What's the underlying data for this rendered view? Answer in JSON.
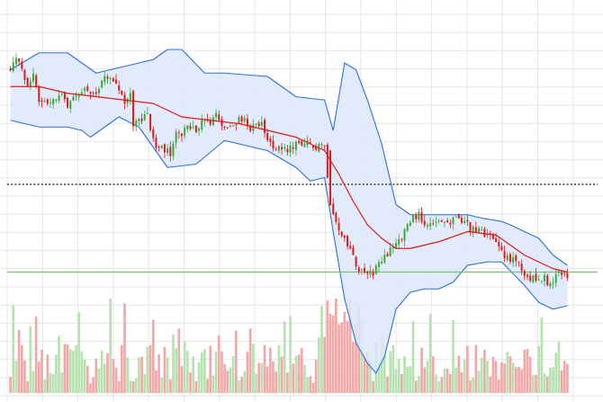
{
  "colors": {
    "background": "#ffffff",
    "grid": "#e6e6e6",
    "up": "#38a838",
    "down": "#e01818",
    "up_volume": "#b6e2b0",
    "down_volume": "#f2a8a8",
    "band_line": "#2f6fdc",
    "band_fill": "#dde8fa",
    "moving_average": "#e01818",
    "resistance_line": "#555555",
    "support_line": "#7cc26a"
  },
  "chart_data": {
    "type": "candlestick",
    "title": "",
    "xlabel": "",
    "ylabel": "",
    "grid": true,
    "legend": "none",
    "ylim": [
      0,
      100
    ],
    "volume_ylim": [
      0,
      100
    ],
    "indicators": [
      "bollinger-bands",
      "moving-average"
    ],
    "reference_lines": [
      {
        "kind": "resistance",
        "style": "dotted",
        "value": 56
      },
      {
        "kind": "support",
        "style": "solid",
        "value": 30
      }
    ],
    "anchors": {
      "close": [
        [
          0,
          91
        ],
        [
          3,
          93
        ],
        [
          6,
          85
        ],
        [
          8,
          90
        ],
        [
          10,
          80
        ],
        [
          15,
          81
        ],
        [
          18,
          82
        ],
        [
          20,
          80
        ],
        [
          22,
          83
        ],
        [
          24,
          82
        ],
        [
          26,
          84
        ],
        [
          30,
          83
        ],
        [
          33,
          89
        ],
        [
          36,
          86
        ],
        [
          38,
          84
        ],
        [
          40,
          80
        ],
        [
          42,
          82
        ],
        [
          43,
          74
        ],
        [
          45,
          75
        ],
        [
          48,
          76
        ],
        [
          50,
          70
        ],
        [
          52,
          66
        ],
        [
          53,
          67
        ],
        [
          56,
          65
        ],
        [
          58,
          72
        ],
        [
          60,
          71
        ],
        [
          62,
          74
        ],
        [
          64,
          72
        ],
        [
          66,
          73
        ],
        [
          68,
          75
        ],
        [
          70,
          74
        ],
        [
          72,
          76
        ],
        [
          74,
          73
        ],
        [
          76,
          72
        ],
        [
          78,
          73
        ],
        [
          80,
          76
        ],
        [
          82,
          75
        ],
        [
          84,
          73
        ],
        [
          86,
          73
        ],
        [
          88,
          74
        ],
        [
          90,
          69
        ],
        [
          92,
          67
        ],
        [
          94,
          68
        ],
        [
          96,
          66
        ],
        [
          98,
          67
        ],
        [
          100,
          68
        ],
        [
          102,
          67
        ],
        [
          104,
          68
        ],
        [
          106,
          66
        ],
        [
          108,
          67
        ],
        [
          110,
          67
        ],
        [
          112,
          51
        ],
        [
          113,
          48
        ],
        [
          115,
          43
        ],
        [
          117,
          39
        ],
        [
          119,
          36
        ],
        [
          121,
          32
        ],
        [
          123,
          30
        ],
        [
          125,
          29
        ],
        [
          127,
          30
        ],
        [
          129,
          32
        ],
        [
          131,
          34
        ],
        [
          133,
          37
        ],
        [
          135,
          39
        ],
        [
          137,
          40
        ],
        [
          139,
          44
        ],
        [
          141,
          46
        ],
        [
          143,
          47
        ],
        [
          145,
          45
        ],
        [
          147,
          44
        ],
        [
          149,
          44
        ],
        [
          151,
          45
        ],
        [
          153,
          44
        ],
        [
          155,
          46
        ],
        [
          157,
          45
        ],
        [
          159,
          45
        ],
        [
          161,
          43
        ],
        [
          163,
          42
        ],
        [
          165,
          42
        ],
        [
          167,
          41
        ],
        [
          169,
          39
        ],
        [
          171,
          38
        ],
        [
          173,
          35
        ],
        [
          175,
          34
        ],
        [
          177,
          33
        ],
        [
          179,
          31
        ],
        [
          181,
          29
        ],
        [
          183,
          28
        ],
        [
          185,
          27
        ],
        [
          187,
          28
        ],
        [
          189,
          26
        ],
        [
          191,
          29
        ],
        [
          193,
          30
        ],
        [
          195,
          29
        ]
      ],
      "moving_average": [
        [
          0,
          85
        ],
        [
          10,
          85
        ],
        [
          20,
          83
        ],
        [
          30,
          82
        ],
        [
          40,
          81
        ],
        [
          50,
          80
        ],
        [
          60,
          76
        ],
        [
          70,
          75
        ],
        [
          80,
          74
        ],
        [
          90,
          72
        ],
        [
          100,
          70
        ],
        [
          110,
          66
        ],
        [
          115,
          59
        ],
        [
          120,
          51
        ],
        [
          125,
          44
        ],
        [
          130,
          40
        ],
        [
          135,
          37
        ],
        [
          140,
          37
        ],
        [
          150,
          39
        ],
        [
          160,
          42
        ],
        [
          170,
          41
        ],
        [
          180,
          35
        ],
        [
          190,
          31
        ],
        [
          195,
          30
        ]
      ],
      "upper_band": [
        [
          0,
          90
        ],
        [
          10,
          95
        ],
        [
          20,
          95
        ],
        [
          30,
          89
        ],
        [
          40,
          91
        ],
        [
          50,
          93
        ],
        [
          55,
          96
        ],
        [
          60,
          96
        ],
        [
          68,
          89
        ],
        [
          75,
          89
        ],
        [
          90,
          88
        ],
        [
          100,
          82
        ],
        [
          110,
          81
        ],
        [
          113,
          72
        ],
        [
          117,
          92
        ],
        [
          121,
          90
        ],
        [
          125,
          81
        ],
        [
          130,
          68
        ],
        [
          135,
          50
        ],
        [
          140,
          47
        ],
        [
          145,
          47
        ],
        [
          150,
          47
        ],
        [
          160,
          47
        ],
        [
          165,
          46
        ],
        [
          172,
          45
        ],
        [
          175,
          44
        ],
        [
          185,
          40
        ],
        [
          190,
          35
        ],
        [
          195,
          32
        ]
      ],
      "lower_band": [
        [
          0,
          75
        ],
        [
          10,
          73
        ],
        [
          20,
          73
        ],
        [
          25,
          72
        ],
        [
          28,
          70
        ],
        [
          38,
          76
        ],
        [
          45,
          73
        ],
        [
          55,
          61
        ],
        [
          65,
          62
        ],
        [
          75,
          69
        ],
        [
          90,
          66
        ],
        [
          100,
          61
        ],
        [
          105,
          57
        ],
        [
          110,
          58
        ],
        [
          113,
          42
        ],
        [
          117,
          22
        ],
        [
          121,
          9
        ],
        [
          125,
          3
        ],
        [
          128,
          0
        ],
        [
          131,
          5
        ],
        [
          135,
          19
        ],
        [
          140,
          24
        ],
        [
          145,
          25
        ],
        [
          150,
          25
        ],
        [
          155,
          27
        ],
        [
          160,
          32
        ],
        [
          167,
          33
        ],
        [
          172,
          33
        ],
        [
          180,
          26
        ],
        [
          185,
          21
        ],
        [
          190,
          19
        ],
        [
          195,
          20
        ]
      ]
    },
    "candle_count": 196,
    "note_count": 0
  }
}
